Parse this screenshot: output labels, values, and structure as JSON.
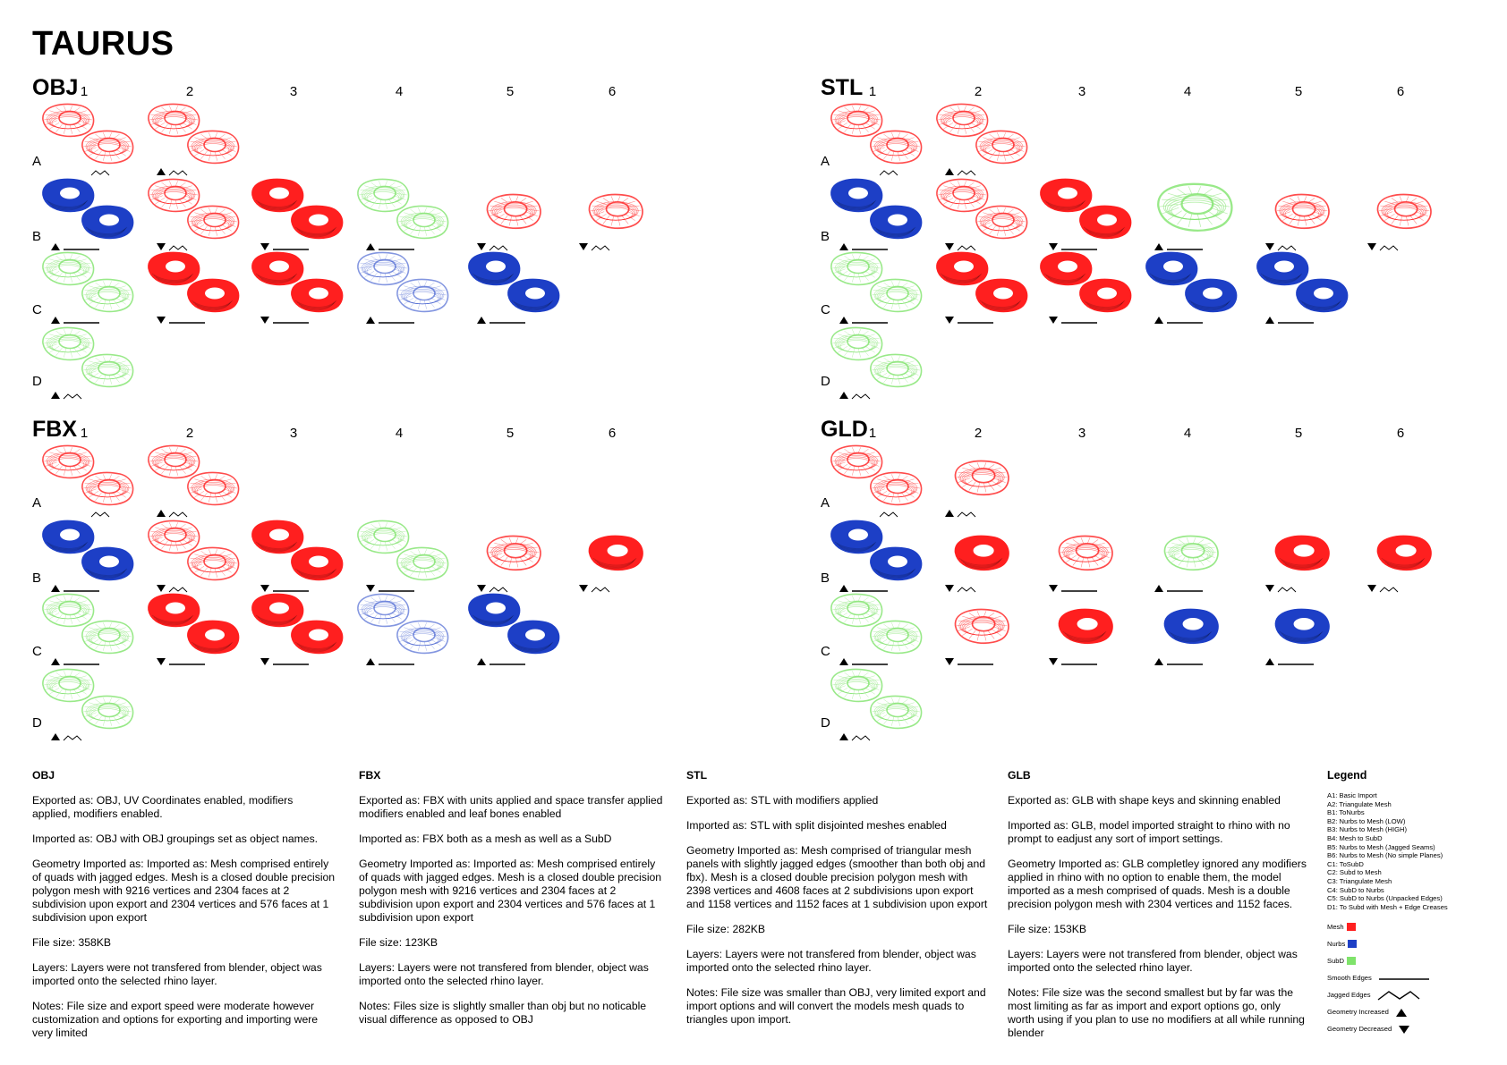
{
  "title": "TAURUS",
  "colors": {
    "mesh": "#ff1f1f",
    "nurbs": "#1d3fc6",
    "subd": "#7fe36b"
  },
  "panels": [
    {
      "title": "OBJ",
      "cols": [
        "1",
        "2",
        "3",
        "4",
        "5",
        "6"
      ],
      "rows": [
        "A",
        "B",
        "C",
        "D"
      ],
      "cells": [
        {
          "row": "A",
          "col": 1,
          "pair": true,
          "colors": [
            "mesh",
            "mesh"
          ],
          "style": "light",
          "marker": "jag"
        },
        {
          "row": "A",
          "col": 2,
          "pair": true,
          "colors": [
            "mesh",
            "mesh"
          ],
          "style": "light",
          "marker": "up-jag"
        },
        {
          "row": "B",
          "col": 1,
          "pair": true,
          "colors": [
            "nurbs",
            "nurbs"
          ],
          "style": "solid",
          "marker": "up-smooth"
        },
        {
          "row": "B",
          "col": 2,
          "pair": true,
          "colors": [
            "mesh",
            "mesh"
          ],
          "style": "light",
          "marker": "down-jag"
        },
        {
          "row": "B",
          "col": 3,
          "pair": true,
          "colors": [
            "mesh",
            "mesh"
          ],
          "style": "solid",
          "marker": "down-smooth"
        },
        {
          "row": "B",
          "col": 4,
          "pair": true,
          "colors": [
            "subd",
            "subd"
          ],
          "style": "light",
          "marker": "up-smooth"
        },
        {
          "row": "B",
          "col": 5,
          "pair": false,
          "colors": [
            "mesh"
          ],
          "style": "light",
          "marker": "down-jag"
        },
        {
          "row": "B",
          "col": 6,
          "pair": false,
          "colors": [
            "mesh"
          ],
          "style": "light",
          "marker": "down-jag"
        },
        {
          "row": "C",
          "col": 1,
          "pair": true,
          "colors": [
            "subd",
            "subd"
          ],
          "style": "light",
          "marker": "up-smooth"
        },
        {
          "row": "C",
          "col": 2,
          "pair": true,
          "colors": [
            "mesh",
            "mesh"
          ],
          "style": "solid",
          "marker": "down-smooth"
        },
        {
          "row": "C",
          "col": 3,
          "pair": true,
          "colors": [
            "mesh",
            "mesh"
          ],
          "style": "solid",
          "marker": "down-smooth"
        },
        {
          "row": "C",
          "col": 4,
          "pair": true,
          "colors": [
            "nurbs",
            "nurbs"
          ],
          "style": "pale",
          "marker": "up-smooth"
        },
        {
          "row": "C",
          "col": 5,
          "pair": true,
          "colors": [
            "nurbs",
            "nurbs"
          ],
          "style": "solid",
          "marker": "up-smooth"
        },
        {
          "row": "D",
          "col": 1,
          "pair": true,
          "colors": [
            "subd",
            "subd"
          ],
          "style": "light",
          "marker": "up-jag"
        }
      ]
    },
    {
      "title": "STL",
      "cols": [
        "1",
        "2",
        "3",
        "4",
        "5",
        "6"
      ],
      "rows": [
        "A",
        "B",
        "C",
        "D"
      ],
      "cells": [
        {
          "row": "A",
          "col": 1,
          "pair": true,
          "colors": [
            "mesh",
            "mesh"
          ],
          "style": "light",
          "marker": "jag"
        },
        {
          "row": "A",
          "col": 2,
          "pair": true,
          "colors": [
            "mesh",
            "mesh"
          ],
          "style": "light",
          "marker": "up-jag"
        },
        {
          "row": "B",
          "col": 1,
          "pair": true,
          "colors": [
            "nurbs",
            "nurbs"
          ],
          "style": "solid",
          "marker": "up-smooth"
        },
        {
          "row": "B",
          "col": 2,
          "pair": true,
          "colors": [
            "mesh",
            "mesh"
          ],
          "style": "light",
          "marker": "down-jag"
        },
        {
          "row": "B",
          "col": 3,
          "pair": true,
          "colors": [
            "mesh",
            "mesh"
          ],
          "style": "solid",
          "marker": "down-smooth"
        },
        {
          "row": "B",
          "col": 4,
          "pair": false,
          "colors": [
            "subd"
          ],
          "style": "light",
          "marker": "up-smooth",
          "big": true
        },
        {
          "row": "B",
          "col": 5,
          "pair": false,
          "colors": [
            "mesh"
          ],
          "style": "light",
          "marker": "down-jag"
        },
        {
          "row": "B",
          "col": 6,
          "pair": false,
          "colors": [
            "mesh"
          ],
          "style": "light",
          "marker": "down-jag"
        },
        {
          "row": "C",
          "col": 1,
          "pair": true,
          "colors": [
            "subd",
            "subd"
          ],
          "style": "light",
          "marker": "up-smooth"
        },
        {
          "row": "C",
          "col": 2,
          "pair": true,
          "colors": [
            "mesh",
            "mesh"
          ],
          "style": "solid",
          "marker": "down-smooth"
        },
        {
          "row": "C",
          "col": 3,
          "pair": true,
          "colors": [
            "mesh",
            "mesh"
          ],
          "style": "solid",
          "marker": "down-smooth"
        },
        {
          "row": "C",
          "col": 4,
          "pair": true,
          "colors": [
            "nurbs",
            "nurbs"
          ],
          "style": "solid",
          "marker": "up-smooth"
        },
        {
          "row": "C",
          "col": 5,
          "pair": true,
          "colors": [
            "nurbs",
            "nurbs"
          ],
          "style": "solid",
          "marker": "up-smooth"
        },
        {
          "row": "D",
          "col": 1,
          "pair": true,
          "colors": [
            "subd",
            "subd"
          ],
          "style": "light",
          "marker": "up-jag"
        }
      ]
    },
    {
      "title": "FBX",
      "cols": [
        "1",
        "2",
        "3",
        "4",
        "5",
        "6"
      ],
      "rows": [
        "A",
        "B",
        "C",
        "D"
      ],
      "cells": [
        {
          "row": "A",
          "col": 1,
          "pair": true,
          "colors": [
            "mesh",
            "mesh"
          ],
          "style": "light",
          "marker": "jag"
        },
        {
          "row": "A",
          "col": 2,
          "pair": true,
          "colors": [
            "mesh",
            "mesh"
          ],
          "style": "light",
          "marker": "up-jag"
        },
        {
          "row": "B",
          "col": 1,
          "pair": true,
          "colors": [
            "nurbs",
            "nurbs"
          ],
          "style": "solid",
          "marker": "up-smooth"
        },
        {
          "row": "B",
          "col": 2,
          "pair": true,
          "colors": [
            "mesh",
            "mesh"
          ],
          "style": "light",
          "marker": "down-jag"
        },
        {
          "row": "B",
          "col": 3,
          "pair": true,
          "colors": [
            "mesh",
            "mesh"
          ],
          "style": "solid",
          "marker": "down-smooth"
        },
        {
          "row": "B",
          "col": 4,
          "pair": true,
          "colors": [
            "subd",
            "subd"
          ],
          "style": "light",
          "marker": "down-smooth"
        },
        {
          "row": "B",
          "col": 5,
          "pair": false,
          "colors": [
            "mesh"
          ],
          "style": "light",
          "marker": "down-jag"
        },
        {
          "row": "B",
          "col": 6,
          "pair": false,
          "colors": [
            "mesh"
          ],
          "style": "solid",
          "marker": "down-jag"
        },
        {
          "row": "C",
          "col": 1,
          "pair": true,
          "colors": [
            "subd",
            "subd"
          ],
          "style": "light",
          "marker": "up-smooth"
        },
        {
          "row": "C",
          "col": 2,
          "pair": true,
          "colors": [
            "mesh",
            "mesh"
          ],
          "style": "solid",
          "marker": "down-smooth"
        },
        {
          "row": "C",
          "col": 3,
          "pair": true,
          "colors": [
            "mesh",
            "mesh"
          ],
          "style": "solid",
          "marker": "down-smooth"
        },
        {
          "row": "C",
          "col": 4,
          "pair": true,
          "colors": [
            "nurbs",
            "nurbs"
          ],
          "style": "pale",
          "marker": "up-smooth"
        },
        {
          "row": "C",
          "col": 5,
          "pair": true,
          "colors": [
            "nurbs",
            "nurbs"
          ],
          "style": "solid",
          "marker": "up-smooth"
        },
        {
          "row": "D",
          "col": 1,
          "pair": true,
          "colors": [
            "subd",
            "subd"
          ],
          "style": "light",
          "marker": "up-jag"
        }
      ]
    },
    {
      "title": "GLD",
      "cols": [
        "1",
        "2",
        "3",
        "4",
        "5",
        "6"
      ],
      "rows": [
        "A",
        "B",
        "C",
        "D"
      ],
      "cells": [
        {
          "row": "A",
          "col": 1,
          "pair": true,
          "colors": [
            "mesh",
            "mesh"
          ],
          "style": "light",
          "marker": "jag"
        },
        {
          "row": "A",
          "col": 2,
          "pair": false,
          "colors": [
            "mesh"
          ],
          "style": "light",
          "marker": "up-jag"
        },
        {
          "row": "B",
          "col": 1,
          "pair": true,
          "colors": [
            "nurbs",
            "nurbs"
          ],
          "style": "solid",
          "marker": "up-smooth"
        },
        {
          "row": "B",
          "col": 2,
          "pair": false,
          "colors": [
            "mesh"
          ],
          "style": "solid",
          "marker": "down-jag"
        },
        {
          "row": "B",
          "col": 3,
          "pair": false,
          "colors": [
            "mesh"
          ],
          "style": "light",
          "marker": "down-smooth"
        },
        {
          "row": "B",
          "col": 4,
          "pair": false,
          "colors": [
            "subd"
          ],
          "style": "light",
          "marker": "up-smooth"
        },
        {
          "row": "B",
          "col": 5,
          "pair": false,
          "colors": [
            "mesh"
          ],
          "style": "solid",
          "marker": "down-jag"
        },
        {
          "row": "B",
          "col": 6,
          "pair": false,
          "colors": [
            "mesh"
          ],
          "style": "solid",
          "marker": "down-jag"
        },
        {
          "row": "C",
          "col": 1,
          "pair": true,
          "colors": [
            "subd",
            "subd"
          ],
          "style": "light",
          "marker": "up-smooth"
        },
        {
          "row": "C",
          "col": 2,
          "pair": false,
          "colors": [
            "mesh"
          ],
          "style": "light",
          "marker": "down-smooth"
        },
        {
          "row": "C",
          "col": 3,
          "pair": false,
          "colors": [
            "mesh"
          ],
          "style": "solid",
          "marker": "down-smooth"
        },
        {
          "row": "C",
          "col": 4,
          "pair": false,
          "colors": [
            "nurbs"
          ],
          "style": "solid",
          "marker": "up-smooth"
        },
        {
          "row": "C",
          "col": 5,
          "pair": false,
          "colors": [
            "nurbs"
          ],
          "style": "solid",
          "marker": "up-smooth"
        },
        {
          "row": "D",
          "col": 1,
          "pair": true,
          "colors": [
            "subd",
            "subd"
          ],
          "style": "light",
          "marker": "up-jag"
        }
      ]
    }
  ],
  "text_columns": [
    {
      "heading": "OBJ",
      "paras": [
        "Exported as: OBJ, UV Coordinates enabled, modifiers\napplied, modifiers enabled.",
        "Imported as: OBJ with OBJ groupings set as object names.",
        "Geometry Imported as: Imported as: Mesh comprised entirely\nof quads with jagged edges. Mesh is a closed double precision\npolygon mesh with 9216 vertices and 2304 faces at 2\nsubdivision upon export and 2304 vertices and 576 faces at 1\nsubdivision upon export",
        "File size: 358KB",
        "Layers: Layers were not transfered from blender, object was\nimported onto the selected rhino layer.",
        "Notes: File size and export speed were moderate however\ncustomization and options for exporting and importing were\nvery limited"
      ]
    },
    {
      "heading": "FBX",
      "paras": [
        "Exported as: FBX with units applied and space transfer applied\nmodifiers enabled and leaf bones enabled",
        "Imported as: FBX both as a mesh as well as a SubD",
        "Geometry Imported as: Imported as: Mesh comprised entirely\nof quads with jagged edges. Mesh is a closed double precision\npolygon mesh with 9216 vertices and 2304 faces at 2\nsubdivision upon export and 2304 vertices and 576 faces at 1\nsubdivision upon export",
        "File size: 123KB",
        "Layers: Layers were not transfered from blender, object was\nimported onto the selected rhino layer.",
        "Notes:  Files size is slightly smaller than obj but no noticable\nvisual difference as opposed to OBJ"
      ]
    },
    {
      "heading": "STL",
      "paras": [
        "Exported as: STL with modifiers applied",
        "Imported as: STL with split disjointed meshes enabled",
        "Geometry Imported as: Mesh comprised of triangular mesh\npanels with slightly jagged edges (smoother than both obj and\nfbx). Mesh is a closed double precision polygon mesh with\n2398 vertices and 4608 faces at 2 subdivisions upon export\nand 1158 vertices and 1152 faces at 1 subdivision upon export",
        "File size: 282KB",
        "Layers: Layers were not transfered from blender, object was\nimported onto the selected rhino layer.",
        "Notes: File size was smaller than OBJ, very limited export and\nimport options and will convert the models mesh quads to\ntriangles upon import."
      ]
    },
    {
      "heading": "GLB",
      "paras": [
        "Exported as:  GLB with shape keys and skinning enabled",
        "Imported as: GLB, model imported straight to rhino with no\nprompt to eadjust any sort of import settings.",
        "Geometry Imported as: GLB completley ignored any modifiers\napplied in rhino with no option to enable them, the model\nimported as a mesh comprised of quads. Mesh is a double\nprecision polygon mesh with 2304 vertices and 1152 faces.",
        "File size: 153KB",
        "Layers: Layers were not transfered from blender, object was\nimported onto the selected rhino layer.",
        "Notes: File size was the second smallest but by far was the\nmost limiting as far as import and export options go, only\nworth using if you plan to use no modifiers at all while running\nblender"
      ]
    }
  ],
  "legend": {
    "heading": "Legend",
    "items": [
      "A1: Basic Import",
      "A2: Triangulate Mesh",
      "B1: ToNurbs",
      "B2: Nurbs to Mesh (LOW)",
      "B3: Nurbs to Mesh (HIGH)",
      "B4: Mesh to SubD",
      "B5: Nurbs to Mesh (Jagged Seams)",
      "B6: Nurbs to Mesh (No simple Planes)",
      "C1: ToSubD",
      "C2: Subd to Mesh",
      "C3: Triangulate Mesh",
      "C4: SubD to Nurbs",
      "C5: SubD to Nurbs (Unpacked Edges)",
      "D1: To Subd with Mesh + Edge Creases"
    ],
    "swatches": [
      {
        "label": "Mesh",
        "color": "mesh"
      },
      {
        "label": "Nurbs",
        "color": "nurbs"
      },
      {
        "label": "SubD",
        "color": "subd"
      }
    ],
    "symbols": [
      {
        "label": "Smooth Edges",
        "icon": "smooth-line"
      },
      {
        "label": "Jagged Edges",
        "icon": "jagged-line"
      },
      {
        "label": "Geometry Increased",
        "icon": "triangle-up"
      },
      {
        "label": "Geometry Decreased",
        "icon": "triangle-down"
      }
    ]
  }
}
